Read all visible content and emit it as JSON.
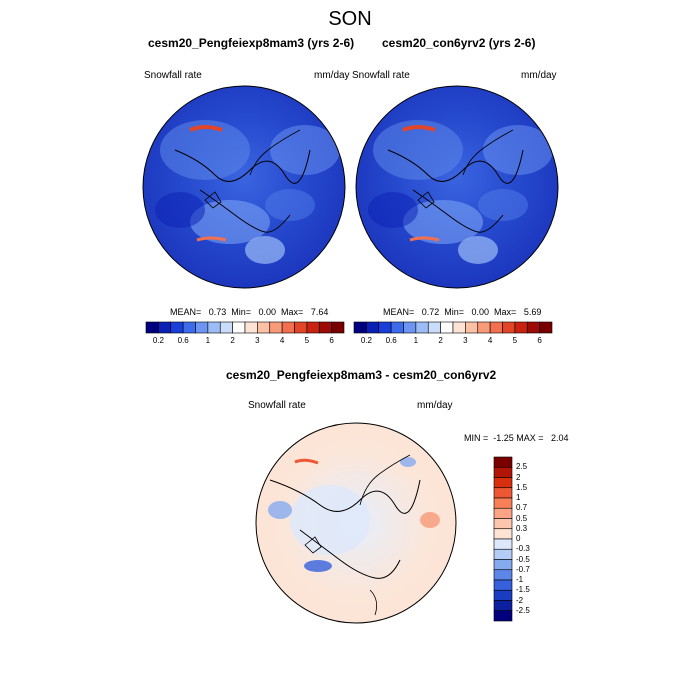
{
  "title": "SON",
  "panels": [
    {
      "title": "cesm20_Pengfeiexp8mam3 (yrs 2-6)",
      "variable": "Snowfall rate",
      "units": "mm/day",
      "stats": "MEAN=   0.73  Min=   0.00  Max=   7.64",
      "mean": 0.73,
      "min": 0.0,
      "max": 7.64
    },
    {
      "title": "cesm20_con6yrv2 (yrs 2-6)",
      "variable": "Snowfall rate",
      "units": "mm/day",
      "stats": "MEAN=   0.72  Min=   0.00  Max=   5.69",
      "mean": 0.72,
      "min": 0.0,
      "max": 5.69
    }
  ],
  "colorbar_top": {
    "labels": [
      "0.2",
      "0.6",
      "1",
      "2",
      "3",
      "4",
      "5",
      "6"
    ],
    "colors": [
      "#00007f",
      "#0a1fb4",
      "#1a3fd8",
      "#3c6bee",
      "#6d96f2",
      "#9cbcf6",
      "#c9dcf9",
      "#ffffff",
      "#fde3d6",
      "#fbc1a5",
      "#f99a78",
      "#f3704f",
      "#e34527",
      "#c82310",
      "#9c0c04",
      "#7a0000"
    ]
  },
  "diff_panel": {
    "title": "cesm20_Pengfeiexp8mam3 - cesm20_con6yrv2",
    "variable": "Snowfall rate",
    "units": "mm/day",
    "stats": "MIN =  -1.25 MAX =   2.04",
    "min": -1.25,
    "max": 2.04
  },
  "colorbar_diff": {
    "labels": [
      "2.5",
      "2",
      "1.5",
      "1",
      "0.7",
      "0.5",
      "0.3",
      "0",
      "-0.3",
      "-0.5",
      "-0.7",
      "-1",
      "-1.5",
      "-2",
      "-2.5"
    ],
    "colors": [
      "#7a0000",
      "#b01505",
      "#d8300f",
      "#ee5733",
      "#f78058",
      "#fba385",
      "#fcc6ae",
      "#fde3d3",
      "#dde9fb",
      "#b3cdf6",
      "#86aaf0",
      "#5c86e8",
      "#3660dc",
      "#1a3cc2",
      "#0b1fa0",
      "#00007f"
    ]
  }
}
